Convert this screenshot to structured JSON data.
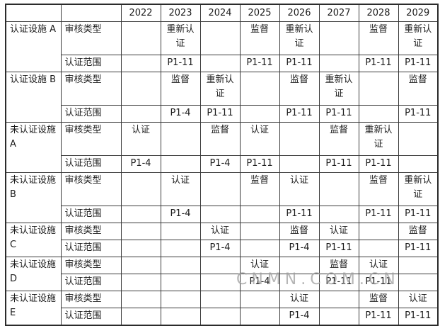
{
  "table": {
    "years": [
      "2022",
      "2023",
      "2024",
      "2025",
      "2026",
      "2027",
      "2028",
      "2029"
    ],
    "row_labels": {
      "audit_type": "审核类型",
      "scope": "认证范围"
    },
    "facilities": [
      {
        "name": "认证设施 A",
        "tall": true,
        "audit_type": [
          "",
          "重新认证",
          "",
          "监督",
          "重新认证",
          "",
          "监督",
          "重新认证"
        ],
        "scope": [
          "",
          "P1-11",
          "",
          "P1-11",
          "P1-11",
          "",
          "P1-11",
          "P1-11"
        ]
      },
      {
        "name": "认证设施 B",
        "tall": true,
        "audit_type": [
          "",
          "监督",
          "重新认证",
          "",
          "监督",
          "重新认证",
          "",
          "监督"
        ],
        "scope": [
          "",
          "P1-4",
          "P1-11",
          "",
          "P1-11",
          "P1-11",
          "",
          "P1-11"
        ]
      },
      {
        "name": "未认证设施 A",
        "tall": true,
        "audit_type": [
          "认证",
          "",
          "监督",
          "认证",
          "",
          "监督",
          "重新认证",
          ""
        ],
        "scope": [
          "P1-4",
          "",
          "P1-4",
          "P1-11",
          "",
          "P1-11",
          "P1-11",
          ""
        ]
      },
      {
        "name": "未认证设施 B",
        "tall": true,
        "audit_type": [
          "",
          "认证",
          "",
          "监督",
          "认证",
          "",
          "监督",
          "重新认证"
        ],
        "scope": [
          "",
          "P1-4",
          "",
          "",
          "P1-11",
          "",
          "P1-11",
          "P1-11"
        ]
      },
      {
        "name": "未认证设施 C",
        "tall": false,
        "audit_type": [
          "",
          "",
          "认证",
          "",
          "监督",
          "认证",
          "",
          "监督"
        ],
        "scope": [
          "",
          "",
          "P1-4",
          "",
          "P1-4",
          "P1-11",
          "",
          "P1-11"
        ]
      },
      {
        "name": "未认证设施 D",
        "tall": false,
        "audit_type": [
          "",
          "",
          "",
          "认证",
          "",
          "监督",
          "认证",
          ""
        ],
        "scope": [
          "",
          "",
          "",
          "P1-4",
          "",
          "P1-11",
          "P1-11",
          ""
        ]
      },
      {
        "name": "未认证设施 E",
        "tall": false,
        "audit_type": [
          "",
          "",
          "",
          "",
          "认证",
          "",
          "监督",
          "认证"
        ],
        "scope": [
          "",
          "",
          "",
          "",
          "P1-4",
          "",
          "P1-11",
          "P1-11"
        ]
      }
    ]
  },
  "watermark": "CNMN.COM.CN",
  "colors": {
    "background": "#ffffff",
    "text": "#1c1c1c",
    "border_inner": "#3b3b3b",
    "border_outer": "#2b2b2b",
    "watermark": "#9e9e9e"
  }
}
